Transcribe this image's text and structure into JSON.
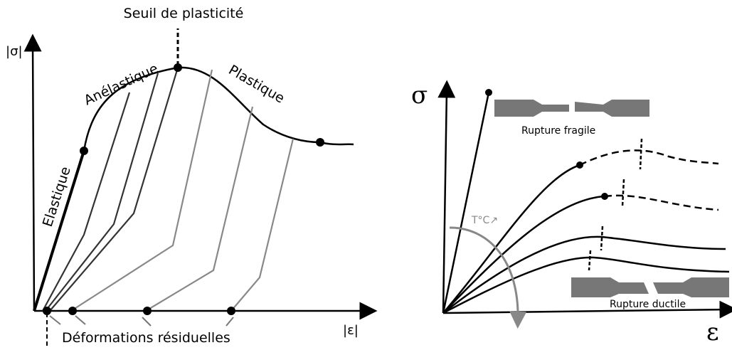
{
  "left": {
    "title": "Seuil de plasticité",
    "y_axis": "|σ|",
    "x_axis": "|ε|",
    "anelastic": "Anélastique",
    "plastic": "Plastique",
    "elastic": "Elastique",
    "residual": "Déformations résiduelles"
  },
  "right": {
    "y_axis": "σ",
    "x_axis": "ε",
    "brittle": "Rupture fragile",
    "ductile": "Rupture ductile",
    "temperature": "T°C↗"
  }
}
